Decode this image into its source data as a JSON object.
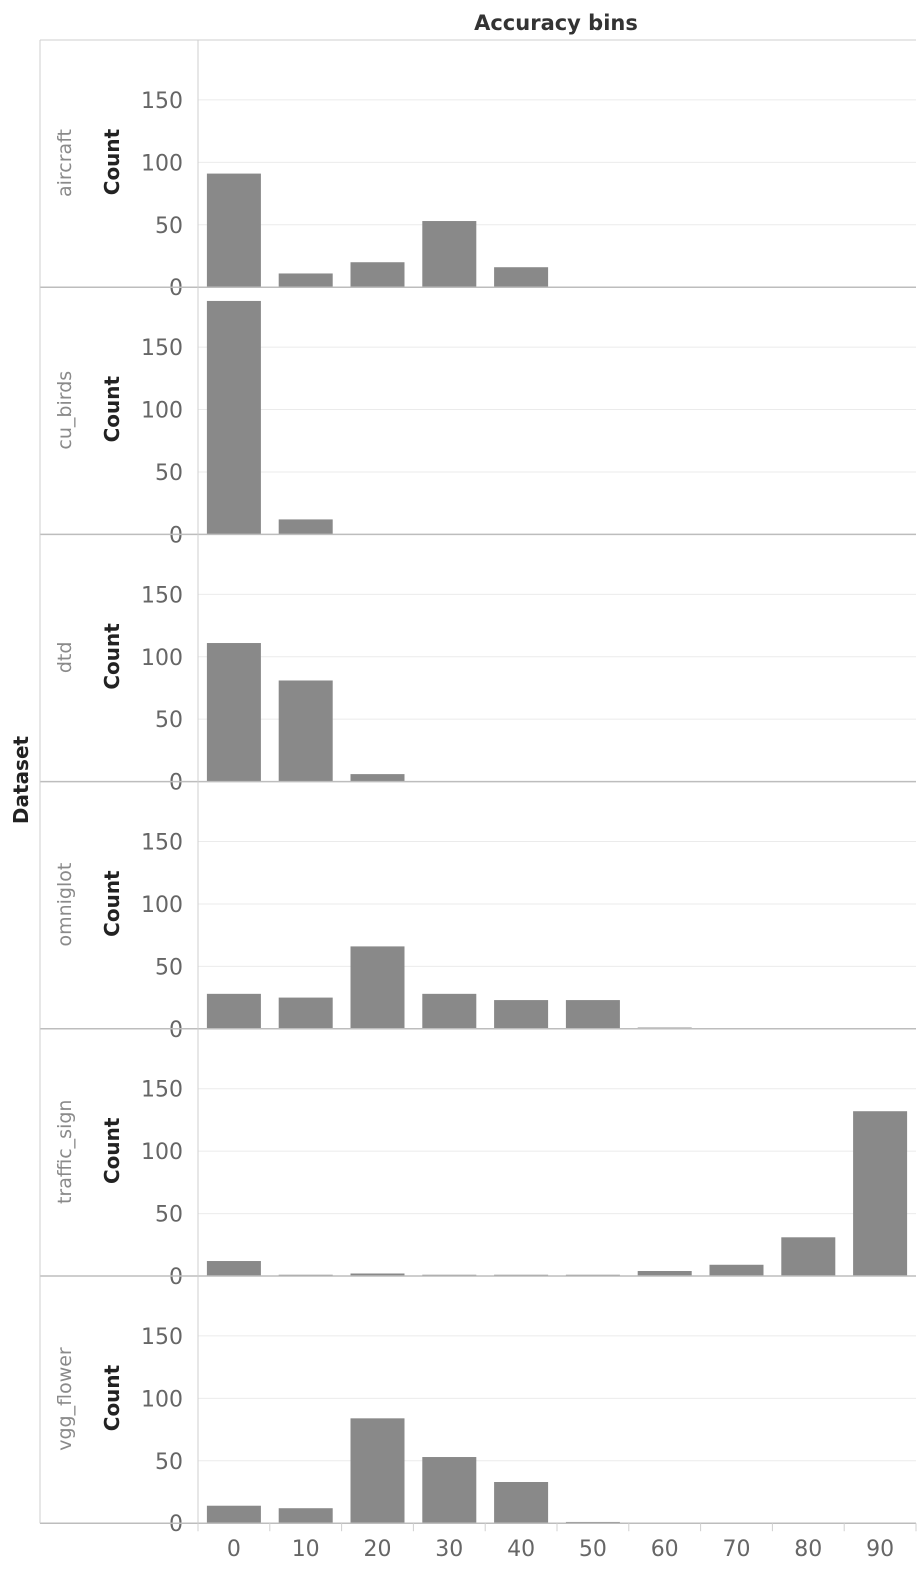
{
  "chart_data": {
    "type": "bar",
    "title": "Accuracy bins",
    "row_field": "Dataset",
    "ylabel": "Count",
    "ylim": [
      0,
      190
    ],
    "yticks": [
      0,
      50,
      100,
      150
    ],
    "categories": [
      "0",
      "10",
      "20",
      "30",
      "40",
      "50",
      "60",
      "70",
      "80",
      "90"
    ],
    "bar_color": "#898989",
    "grid": true,
    "series": [
      {
        "name": "aircraft",
        "values": [
          91,
          11,
          20,
          53,
          16,
          null,
          null,
          null,
          null,
          null
        ]
      },
      {
        "name": "cu_birds",
        "values": [
          187,
          12,
          null,
          null,
          null,
          null,
          null,
          null,
          null,
          null
        ]
      },
      {
        "name": "dtd",
        "values": [
          111,
          81,
          6,
          null,
          null,
          null,
          null,
          null,
          null,
          null
        ]
      },
      {
        "name": "omniglot",
        "values": [
          28,
          25,
          66,
          28,
          23,
          23,
          1,
          null,
          null,
          null
        ]
      },
      {
        "name": "traffic_sign",
        "values": [
          12,
          1,
          2,
          1,
          1,
          1,
          4,
          9,
          31,
          132
        ]
      },
      {
        "name": "vgg_flower",
        "values": [
          14,
          12,
          84,
          53,
          33,
          1,
          null,
          null,
          null,
          null
        ]
      }
    ]
  }
}
